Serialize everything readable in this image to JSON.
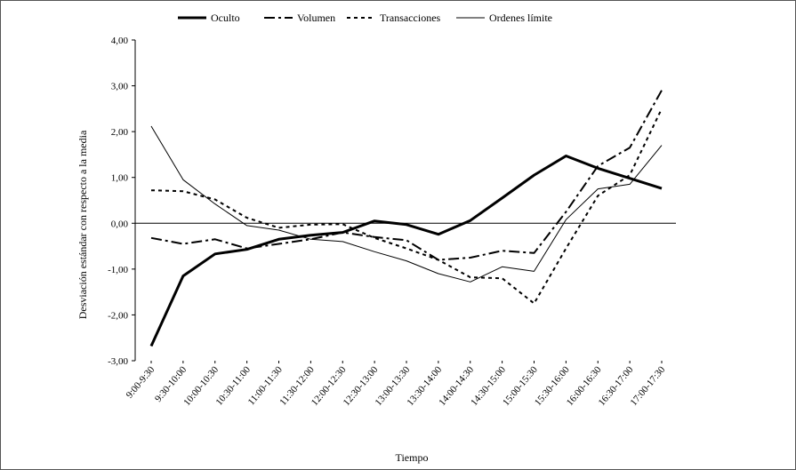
{
  "chart_data": {
    "type": "line",
    "title": "",
    "xlabel": "Tiempo",
    "ylabel": "Desviación estándar con respecto a la media",
    "ylim": [
      -3,
      4
    ],
    "yticks": [
      "4,00",
      "3,00",
      "2,00",
      "1,00",
      "0,00",
      "-1,00",
      "-2,00",
      "-3,00"
    ],
    "grid": false,
    "legend_position": "top",
    "categories": [
      "9:00-9:30",
      "9:30-10:00",
      "10:00-10:30",
      "10:30-11:00",
      "11:00-11:30",
      "11:30-12:00",
      "12:00-12:30",
      "12:30-13:00",
      "13:00-13:30",
      "13:30-14:00",
      "14:00-14:30",
      "14:30-15:00",
      "15:00-15:30",
      "15:30-16:00",
      "16:00-16:30",
      "16:30-17:00",
      "17:00-17:30"
    ],
    "series": [
      {
        "name": "Oculto",
        "style": "solid-thick",
        "values": [
          -2.68,
          -1.15,
          -0.67,
          -0.57,
          -0.35,
          -0.26,
          -0.2,
          0.05,
          -0.03,
          -0.24,
          0.06,
          0.55,
          1.05,
          1.47,
          1.2,
          0.98,
          0.76
        ]
      },
      {
        "name": "Volumen",
        "style": "dash-dot",
        "values": [
          -0.32,
          -0.45,
          -0.35,
          -0.55,
          -0.45,
          -0.35,
          -0.2,
          -0.3,
          -0.37,
          -0.8,
          -0.75,
          -0.6,
          -0.65,
          0.25,
          1.25,
          1.65,
          2.9
        ]
      },
      {
        "name": "Transacciones",
        "style": "dotted",
        "values": [
          0.72,
          0.7,
          0.52,
          0.12,
          -0.1,
          -0.03,
          -0.02,
          -0.32,
          -0.55,
          -0.8,
          -1.18,
          -1.2,
          -1.75,
          -0.55,
          0.6,
          1.05,
          2.5
        ]
      },
      {
        "name": "Ordenes límite",
        "style": "solid-thin",
        "values": [
          2.12,
          0.95,
          0.42,
          -0.05,
          -0.15,
          -0.35,
          -0.4,
          -0.62,
          -0.82,
          -1.1,
          -1.28,
          -0.95,
          -1.05,
          0.08,
          0.75,
          0.85,
          1.7
        ]
      }
    ]
  }
}
